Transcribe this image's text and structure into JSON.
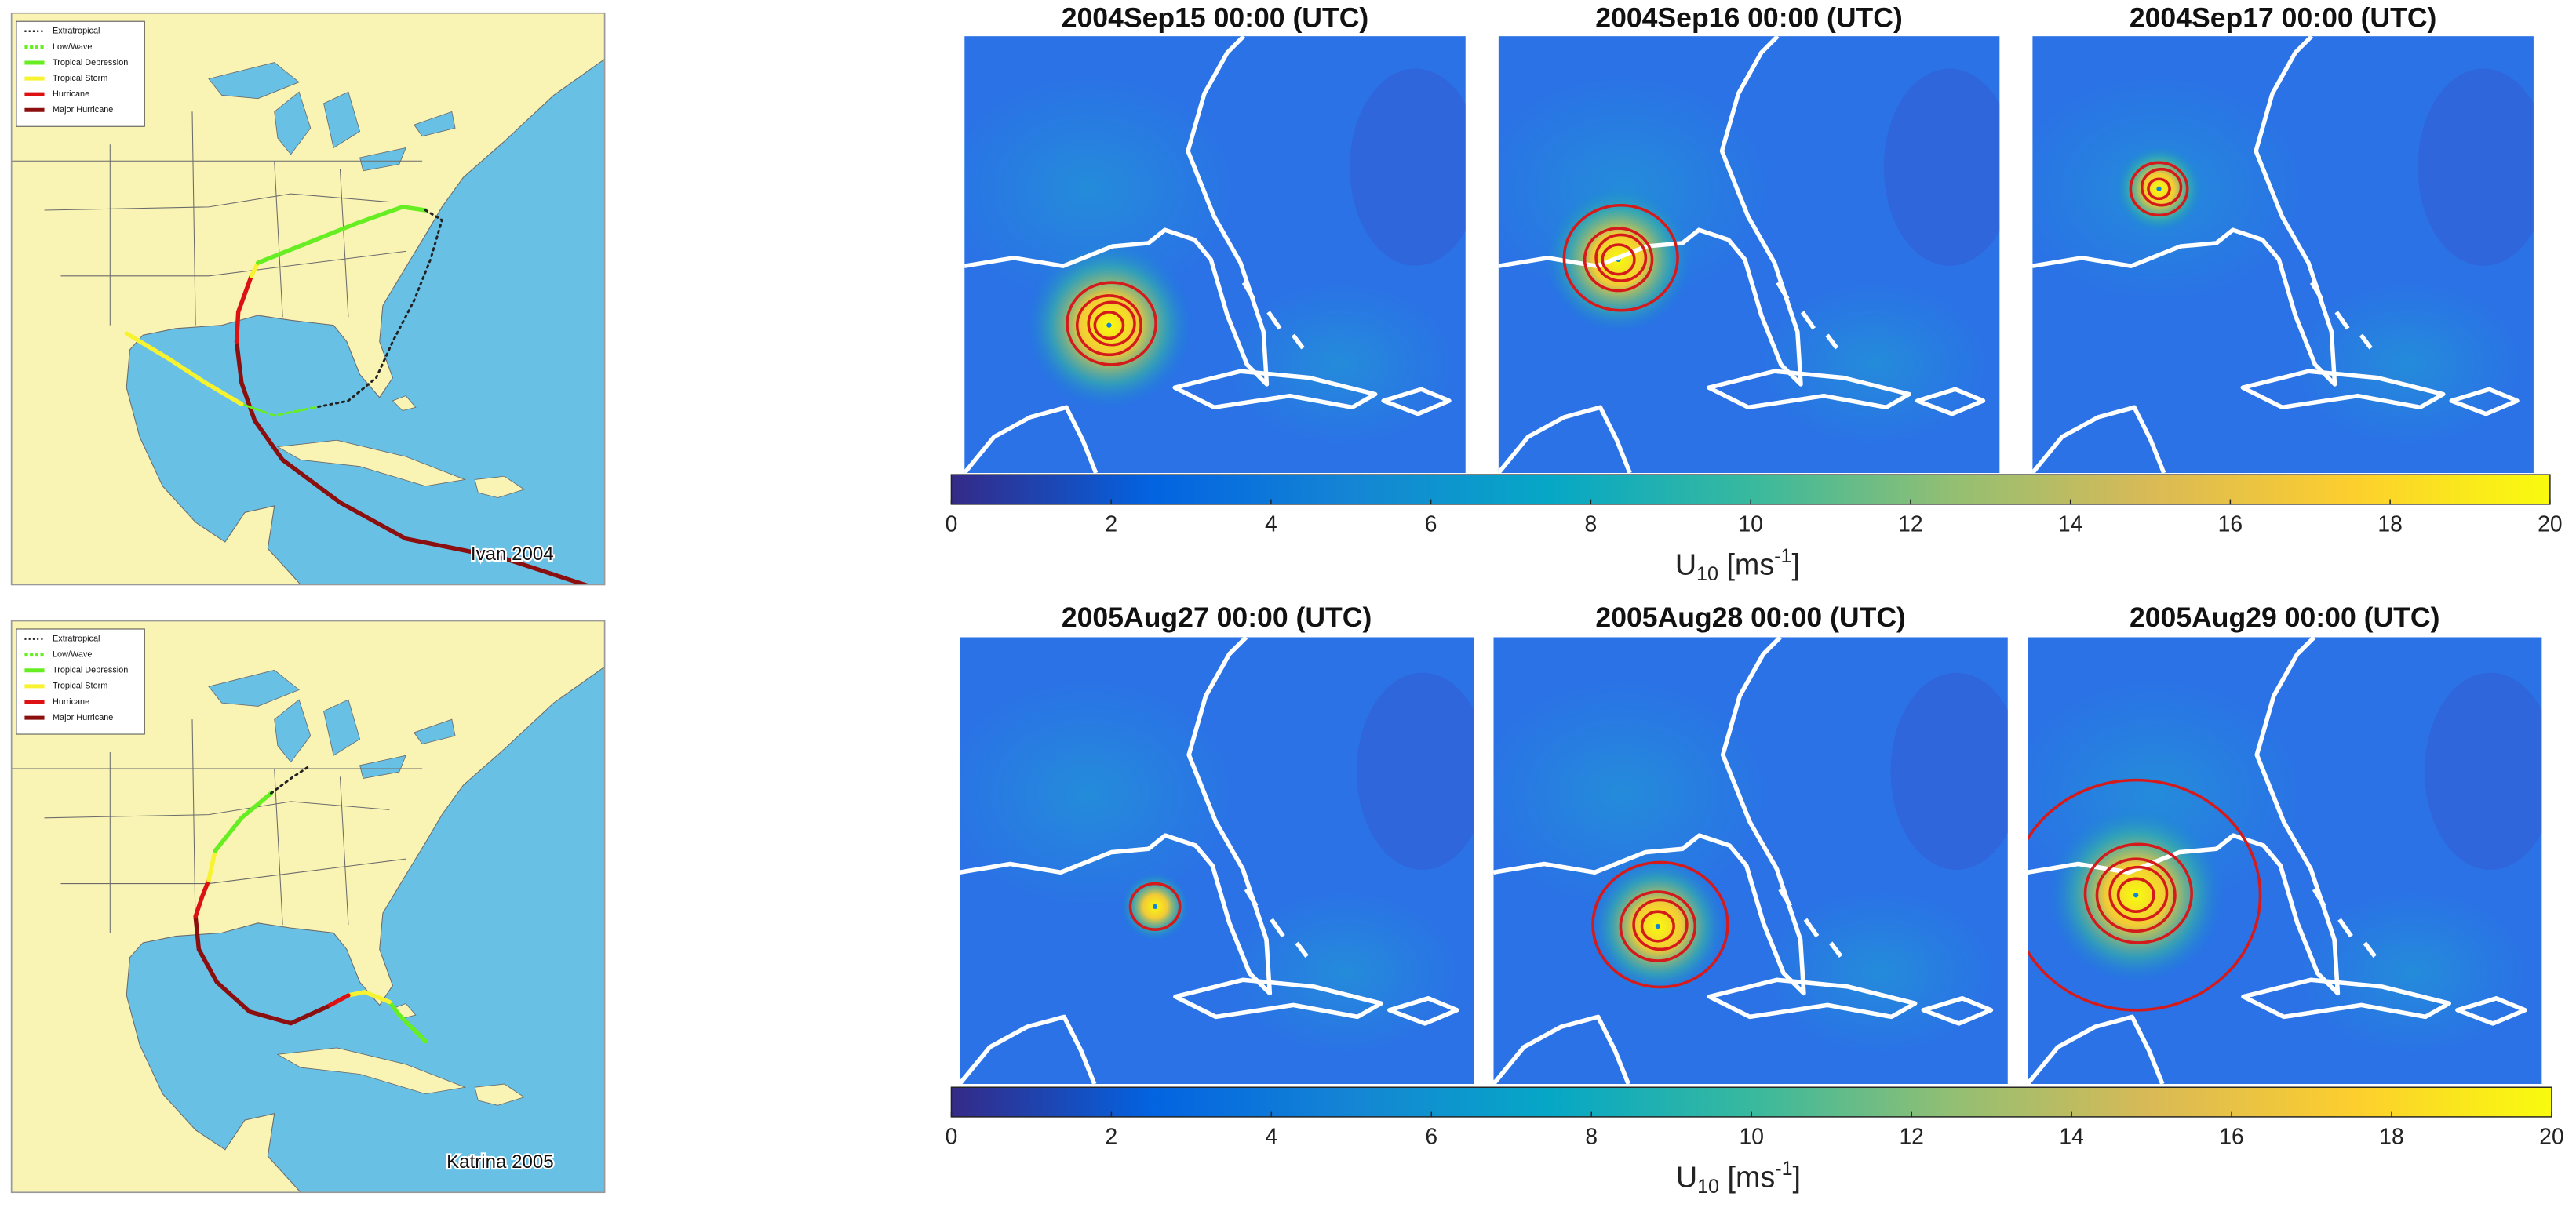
{
  "colormap": [
    "#352a87",
    "#0363e1",
    "#1485d4",
    "#06a7c6",
    "#38b99e",
    "#92bf73",
    "#d9ba56",
    "#fcce2e",
    "#f9fb0e"
  ],
  "track_maps": [
    {
      "label": "Ivan 2004",
      "legend": [
        "Extratropical",
        "Low/Wave",
        "Tropical Depression",
        "Tropical Storm",
        "Hurricane",
        "Major Hurricane"
      ]
    },
    {
      "label": "Katrina 2005",
      "legend": [
        "Extratropical",
        "Low/Wave",
        "Tropical Depression",
        "Tropical Storm",
        "Hurricane",
        "Major Hurricane"
      ]
    }
  ],
  "wind_rows": [
    {
      "titles": [
        "2004Sep15 00:00 (UTC)",
        "2004Sep16 00:00 (UTC)",
        "2004Sep17 00:00 (UTC)"
      ],
      "colorbar": {
        "lim": [
          0,
          20
        ],
        "ticks": [
          0,
          2,
          4,
          6,
          8,
          10,
          12,
          14,
          16,
          18,
          20
        ],
        "label": {
          "symbol": "U",
          "subscript": "10",
          "unit": "[ms",
          "superscript": "-1",
          "close": "]"
        }
      }
    },
    {
      "titles": [
        "2005Aug27 00:00 (UTC)",
        "2005Aug28 00:00 (UTC)",
        "2005Aug29 00:00 (UTC)"
      ],
      "colorbar": {
        "lim": [
          0,
          20
        ],
        "ticks": [
          0,
          2,
          4,
          6,
          8,
          10,
          12,
          14,
          16,
          18,
          20
        ],
        "label": {
          "symbol": "U",
          "subscript": "10",
          "unit": "[ms",
          "superscript": "-1",
          "close": "]"
        }
      }
    }
  ]
}
